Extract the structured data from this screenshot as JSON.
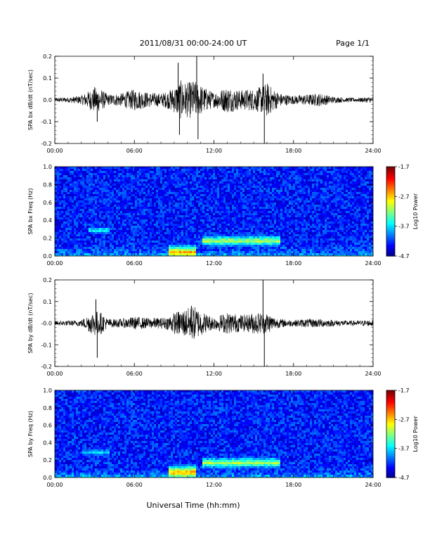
{
  "header": {
    "title": "2011/08/31   00:00-24:00 UT",
    "page": "Page 1/1"
  },
  "footer": {
    "xlabel": "Universal Time (hh:mm)"
  },
  "colors": {
    "wave": "#000000",
    "frame": "#000000",
    "background": "#ffffff"
  },
  "chart_data": [
    {
      "type": "line",
      "name": "bx-timeseries",
      "ylabel": "SPA bx dB/dt (nT/sec)",
      "xlim_hours": [
        0,
        24
      ],
      "ylim": [
        -0.2,
        0.2
      ],
      "xticks": [
        "00:00",
        "06:00",
        "12:00",
        "18:00",
        "24:00"
      ],
      "yticks": [
        "0.2",
        "0.1",
        "0.0",
        "-0.1",
        "-0.2"
      ],
      "envelope": {
        "hours": [
          0,
          1,
          2,
          3,
          3.5,
          4,
          5,
          6,
          7,
          8,
          8.5,
          9,
          9.5,
          10,
          10.5,
          11,
          11.5,
          12,
          13,
          14,
          14.5,
          15,
          15.5,
          16,
          16.5,
          17,
          18,
          19,
          20,
          21,
          22,
          23,
          24
        ],
        "amplitude": [
          0.01,
          0.012,
          0.02,
          0.06,
          0.05,
          0.025,
          0.03,
          0.05,
          0.035,
          0.03,
          0.04,
          0.06,
          0.09,
          0.08,
          0.09,
          0.07,
          0.05,
          0.035,
          0.06,
          0.045,
          0.05,
          0.05,
          0.06,
          0.08,
          0.05,
          0.03,
          0.02,
          0.025,
          0.03,
          0.015,
          0.01,
          0.01,
          0.015
        ]
      },
      "spikes": [
        {
          "hour": 3.2,
          "value": -0.1
        },
        {
          "hour": 9.3,
          "value": 0.17
        },
        {
          "hour": 9.4,
          "value": -0.16
        },
        {
          "hour": 10.7,
          "value": 0.2
        },
        {
          "hour": 10.8,
          "value": -0.18
        },
        {
          "hour": 15.7,
          "value": 0.12
        },
        {
          "hour": 15.8,
          "value": -0.2
        }
      ]
    },
    {
      "type": "heatmap",
      "name": "bx-spectrogram",
      "ylabel": "SPA bx Freq (Hz)",
      "xlim_hours": [
        0,
        24
      ],
      "ylim": [
        0,
        1.0
      ],
      "xticks": [
        "00:00",
        "06:00",
        "12:00",
        "18:00",
        "24:00"
      ],
      "yticks": [
        "1.0",
        "0.8",
        "0.6",
        "0.4",
        "0.2",
        "0.0"
      ],
      "colorbar": {
        "label": "Log10 Power",
        "ticks": [
          "-1.7",
          "-2.7",
          "-3.7",
          "-4.7"
        ],
        "range": [
          -4.7,
          -1.7
        ]
      },
      "features": [
        {
          "hour_start": 11.0,
          "hour_end": 17.0,
          "freq": 0.18,
          "level": -3.0
        },
        {
          "hour_start": 8.5,
          "hour_end": 10.5,
          "freq": 0.05,
          "level": -2.5
        },
        {
          "hour_start": 2.5,
          "hour_end": 4.0,
          "freq": 0.3,
          "level": -3.5
        }
      ]
    },
    {
      "type": "line",
      "name": "by-timeseries",
      "ylabel": "SPA by dB/dt (nT/sec)",
      "xlim_hours": [
        0,
        24
      ],
      "ylim": [
        -0.2,
        0.2
      ],
      "xticks": [
        "00:00",
        "06:00",
        "12:00",
        "18:00",
        "24:00"
      ],
      "yticks": [
        "0.2",
        "0.1",
        "-0.0",
        "-0.1",
        "-0.2"
      ],
      "envelope": {
        "hours": [
          0,
          1,
          2,
          3,
          3.5,
          4,
          5,
          6,
          7,
          8,
          8.5,
          9,
          9.5,
          10,
          10.5,
          11,
          11.5,
          12,
          13,
          14,
          14.5,
          15,
          15.5,
          16,
          16.5,
          17,
          18,
          19,
          20,
          21,
          22,
          23,
          24
        ],
        "amplitude": [
          0.012,
          0.012,
          0.015,
          0.06,
          0.05,
          0.02,
          0.02,
          0.03,
          0.025,
          0.025,
          0.03,
          0.05,
          0.06,
          0.07,
          0.08,
          0.06,
          0.04,
          0.03,
          0.05,
          0.04,
          0.04,
          0.05,
          0.05,
          0.05,
          0.03,
          0.02,
          0.015,
          0.02,
          0.02,
          0.015,
          0.012,
          0.012,
          0.015
        ]
      },
      "spikes": [
        {
          "hour": 3.1,
          "value": 0.11
        },
        {
          "hour": 3.2,
          "value": -0.16
        },
        {
          "hour": 10.3,
          "value": 0.08
        },
        {
          "hour": 15.7,
          "value": 0.2
        },
        {
          "hour": 15.8,
          "value": -0.22
        }
      ]
    },
    {
      "type": "heatmap",
      "name": "by-spectrogram",
      "ylabel": "SPA by Freq (Hz)",
      "xlim_hours": [
        0,
        24
      ],
      "ylim": [
        0,
        1.0
      ],
      "xticks": [
        "00:00",
        "06:00",
        "12:00",
        "18:00",
        "24:00"
      ],
      "yticks": [
        "1.0",
        "0.8",
        "0.6",
        "0.4",
        "0.2",
        "0.0"
      ],
      "colorbar": {
        "label": "Log10 Power",
        "ticks": [
          "-1.7",
          "-2.7",
          "-3.7",
          "-4.7"
        ],
        "range": [
          -4.7,
          -1.7
        ]
      },
      "features": [
        {
          "hour_start": 11.0,
          "hour_end": 17.0,
          "freq": 0.18,
          "level": -3.0
        },
        {
          "hour_start": 8.5,
          "hour_end": 10.5,
          "freq": 0.07,
          "level": -2.5
        },
        {
          "hour_start": 2.0,
          "hour_end": 4.0,
          "freq": 0.3,
          "level": -3.6
        }
      ]
    }
  ]
}
